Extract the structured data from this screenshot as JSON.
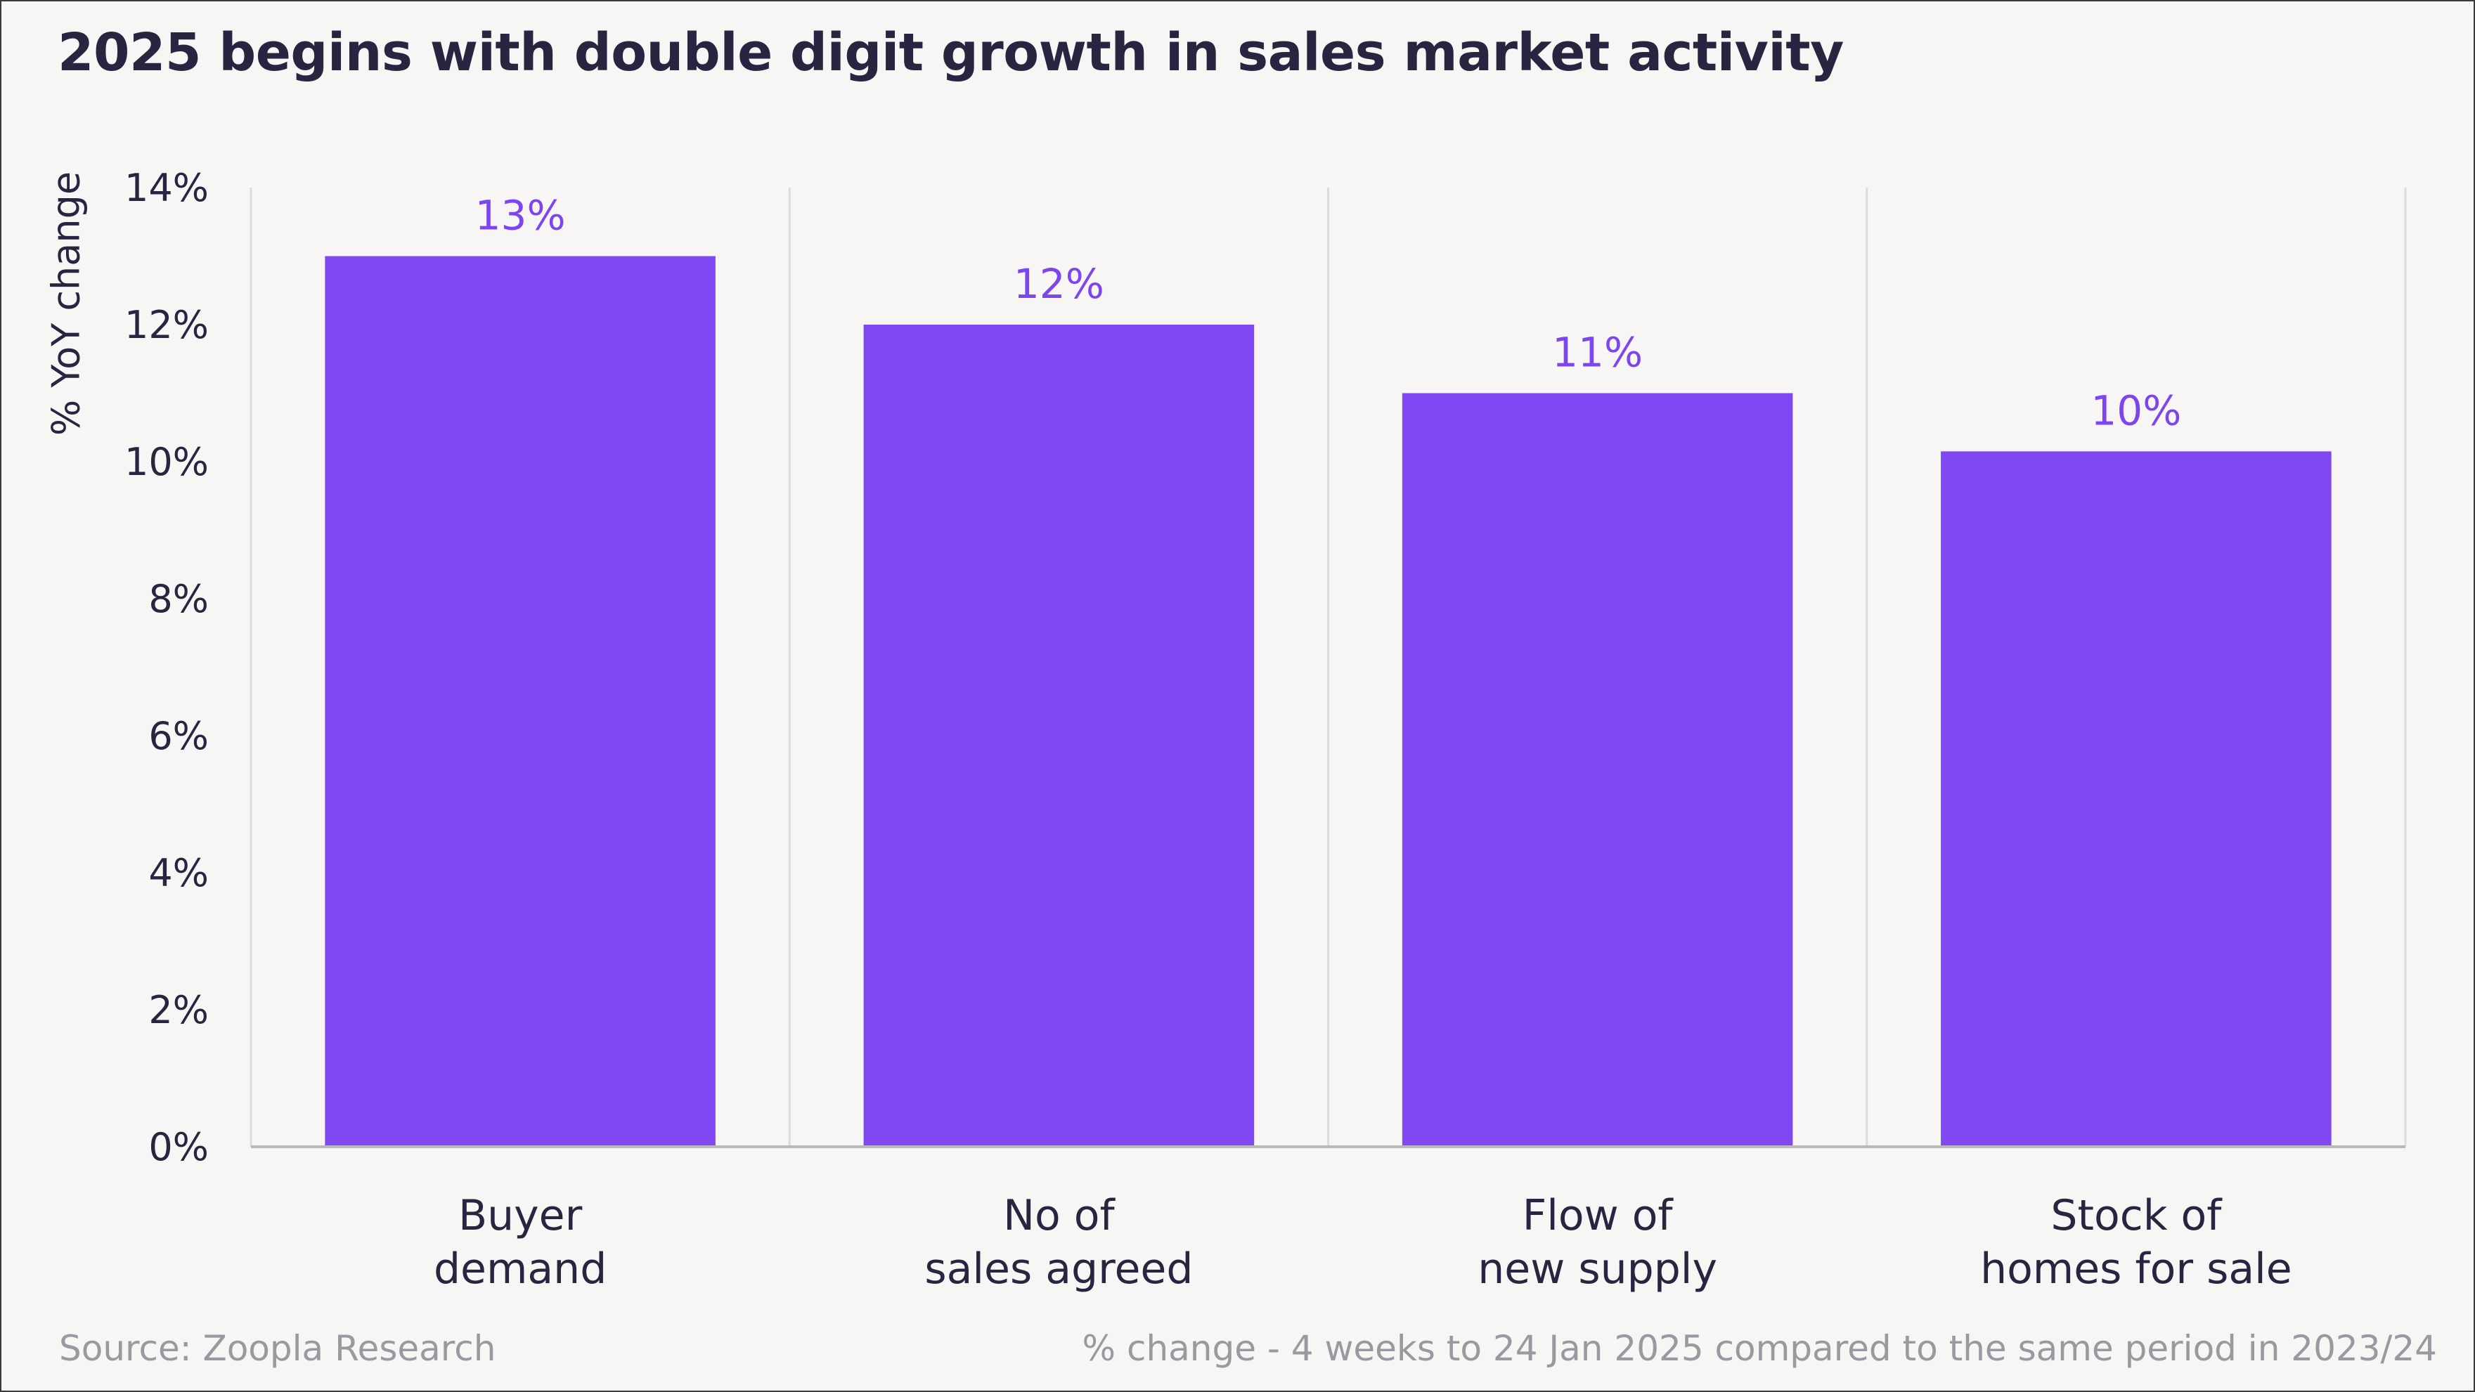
{
  "title": "2025 begins with double digit growth in sales market activity",
  "source": "Source: Zoopla Research",
  "note": "% change - 4 weeks to 24 Jan 2025 compared to the same period in 2023/24",
  "colors": {
    "bar": "#8047f2",
    "value_label": "#7c45f0",
    "grid": "#dcdcdc",
    "axis": "#b8b8b8"
  },
  "chart_data": {
    "type": "bar",
    "categories": [
      [
        "Buyer",
        "demand"
      ],
      [
        "No of",
        "sales agreed"
      ],
      [
        "Flow of",
        "new supply"
      ],
      [
        "Stock of",
        "homes for sale"
      ]
    ],
    "values": [
      13,
      12,
      11,
      10.15
    ],
    "value_labels": [
      "13%",
      "12%",
      "11%",
      "10%"
    ],
    "ylabel": "% YoY change",
    "ylim": [
      0,
      14
    ],
    "yticks": [
      0,
      2,
      4,
      6,
      8,
      10,
      12,
      14
    ],
    "ytick_labels": [
      "0%",
      "2%",
      "4%",
      "6%",
      "8%",
      "10%",
      "12%",
      "14%"
    ],
    "grid": "vertical separators between categories"
  }
}
